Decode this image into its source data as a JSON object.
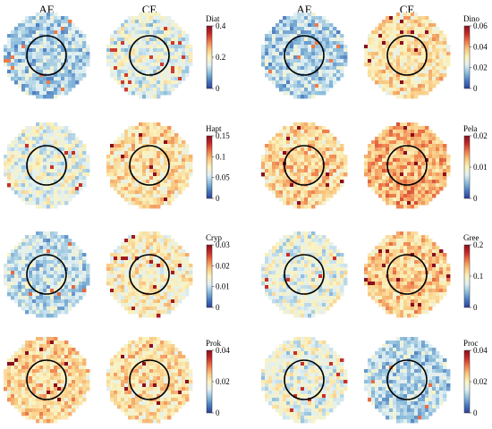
{
  "headers": [
    "AE",
    "CE",
    "AE",
    "CE"
  ],
  "panels": [
    {
      "variable": "Diat",
      "ticks": [
        "0.4",
        "0.2",
        "0"
      ],
      "level_ae": 0.3,
      "level_ce": 0.4
    },
    {
      "variable": "Dino",
      "ticks": [
        "0.06",
        "0.04",
        "0.02",
        "0"
      ],
      "level_ae": 0.3,
      "level_ce": 0.55
    },
    {
      "variable": "Hapt",
      "ticks": [
        "0.15",
        "0.1",
        "0.05",
        "0"
      ],
      "level_ae": 0.42,
      "level_ce": 0.55
    },
    {
      "variable": "Pela",
      "ticks": [
        "0.02",
        "0.01",
        "0"
      ],
      "level_ae": 0.58,
      "level_ce": 0.65
    },
    {
      "variable": "Cryp",
      "ticks": [
        "0.03",
        "0.02",
        "0.01",
        "0"
      ],
      "level_ae": 0.33,
      "level_ce": 0.5
    },
    {
      "variable": "Gree",
      "ticks": [
        "0.2",
        "0.1",
        "0"
      ],
      "level_ae": 0.42,
      "level_ce": 0.6
    },
    {
      "variable": "Prok",
      "ticks": [
        "0.04",
        "0.02",
        "0"
      ],
      "level_ae": 0.58,
      "level_ce": 0.55
    },
    {
      "variable": "Proc",
      "ticks": [
        "0.04",
        "0.02",
        "0"
      ],
      "level_ae": 0.42,
      "level_ce": 0.32
    }
  ],
  "colormap": [
    "#2c3f99",
    "#4a7bc0",
    "#8fbfdc",
    "#e1f0f4",
    "#fbf3bf",
    "#f9c880",
    "#ee7a4a",
    "#c62b28",
    "#8a0e1f"
  ]
}
